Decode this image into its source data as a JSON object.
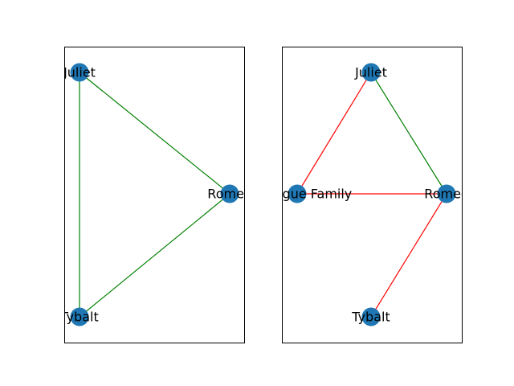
{
  "colors": {
    "node": "#1f77b4",
    "edge_green": "#008000",
    "edge_red": "#ff0000",
    "frame": "#000000"
  },
  "panels": [
    {
      "id": "left",
      "nodes": [
        {
          "id": "juliet",
          "label": "Juliet"
        },
        {
          "id": "romeo",
          "label": "Romeo"
        },
        {
          "id": "tybalt",
          "label": "Tybalt"
        }
      ],
      "edges": [
        {
          "from": "juliet",
          "to": "romeo",
          "color": "#008000"
        },
        {
          "from": "juliet",
          "to": "tybalt",
          "color": "#008000"
        },
        {
          "from": "tybalt",
          "to": "romeo",
          "color": "#008000"
        }
      ]
    },
    {
      "id": "right",
      "nodes": [
        {
          "id": "juliet",
          "label": "Juliet"
        },
        {
          "id": "montague",
          "label": "Montague Family"
        },
        {
          "id": "romeo",
          "label": "Romeo"
        },
        {
          "id": "tybalt",
          "label": "Tybalt"
        }
      ],
      "edges": [
        {
          "from": "juliet",
          "to": "montague",
          "color": "#ff0000"
        },
        {
          "from": "juliet",
          "to": "romeo",
          "color": "#008000"
        },
        {
          "from": "montague",
          "to": "romeo",
          "color": "#ff0000"
        },
        {
          "from": "romeo",
          "to": "tybalt",
          "color": "#ff0000"
        }
      ]
    }
  ]
}
